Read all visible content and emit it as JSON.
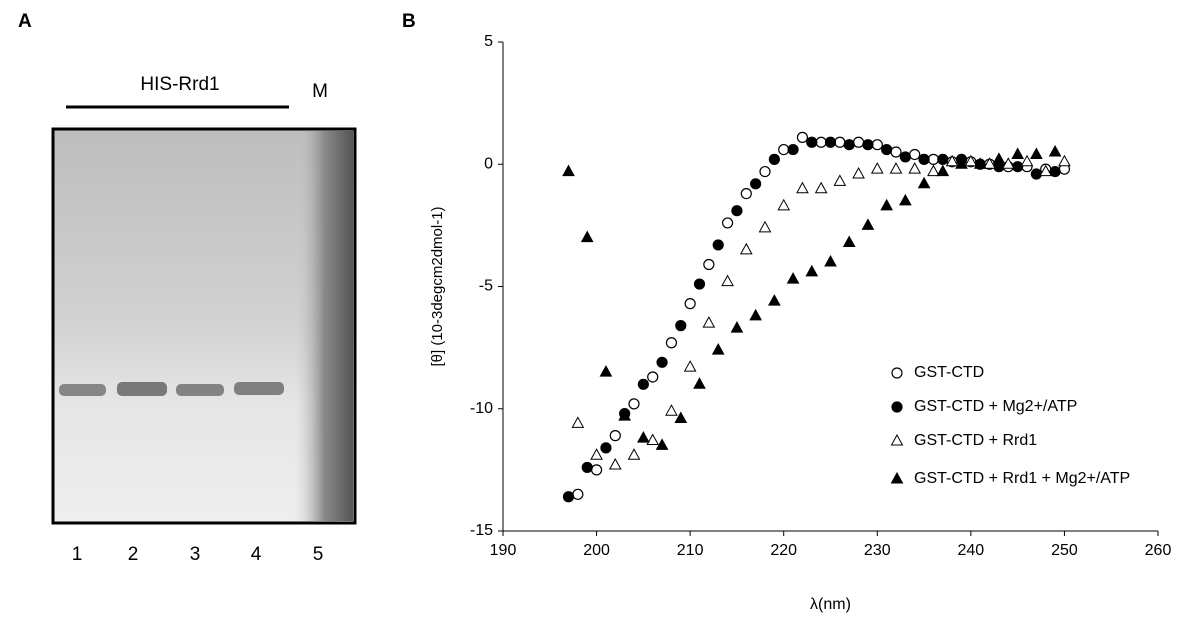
{
  "panels": [
    "A",
    "B"
  ],
  "gel": {
    "label": "HIS-Rrd1",
    "marker": "M",
    "lanes": [
      "1",
      "2",
      "3",
      "4",
      "5"
    ]
  },
  "chart_data": {
    "type": "scatter",
    "x_label": "λ(nm)",
    "y_label": "[θ] (10-3degcm2dmol-1)",
    "xlim": [
      190,
      260
    ],
    "xticks": [
      190,
      200,
      210,
      220,
      230,
      240,
      250,
      260
    ],
    "ylim": [
      -15,
      5
    ],
    "yticks": [
      -15,
      -10,
      -5,
      0,
      5
    ],
    "legend": "lower right",
    "series": [
      {
        "name": "GST-CTD",
        "marker": "circle",
        "filled": false,
        "color": "#000000",
        "x": [
          198,
          200,
          202,
          204,
          206,
          208,
          210,
          212,
          214,
          216,
          218,
          220,
          222,
          224,
          226,
          228,
          230,
          232,
          234,
          236,
          238,
          240,
          242,
          244,
          246,
          248,
          250
        ],
        "values": [
          -13.5,
          -12.5,
          -11.1,
          -9.8,
          -8.7,
          -7.3,
          -5.7,
          -4.1,
          -2.4,
          -1.2,
          -0.3,
          0.6,
          1.1,
          0.9,
          0.9,
          0.9,
          0.8,
          0.5,
          0.4,
          0.2,
          0.1,
          0.1,
          0.0,
          -0.1,
          -0.1,
          -0.2,
          -0.2
        ]
      },
      {
        "name": "GST-CTD + Mg2+/ATP",
        "marker": "circle",
        "filled": true,
        "color": "#000000",
        "x": [
          197,
          199,
          201,
          203,
          205,
          207,
          209,
          211,
          213,
          215,
          217,
          219,
          221,
          223,
          225,
          227,
          229,
          231,
          233,
          235,
          237,
          239,
          241,
          243,
          245,
          247,
          249
        ],
        "values": [
          -13.6,
          -12.4,
          -11.6,
          -10.2,
          -9.0,
          -8.1,
          -6.6,
          -4.9,
          -3.3,
          -1.9,
          -0.8,
          0.2,
          0.6,
          0.9,
          0.9,
          0.8,
          0.8,
          0.6,
          0.3,
          0.2,
          0.2,
          0.2,
          0.0,
          -0.1,
          -0.1,
          -0.4,
          -0.3
        ]
      },
      {
        "name": "GST-CTD + Rrd1",
        "marker": "triangle",
        "filled": false,
        "color": "#000000",
        "x": [
          198,
          200,
          202,
          204,
          206,
          208,
          210,
          212,
          214,
          216,
          218,
          220,
          222,
          224,
          226,
          228,
          230,
          232,
          234,
          236,
          238,
          240,
          242,
          244,
          246,
          248,
          250
        ],
        "values": [
          -10.6,
          -11.9,
          -12.3,
          -11.9,
          -11.3,
          -10.1,
          -8.3,
          -6.5,
          -4.8,
          -3.5,
          -2.6,
          -1.7,
          -1.0,
          -1.0,
          -0.7,
          -0.4,
          -0.2,
          -0.2,
          -0.2,
          -0.3,
          0.1,
          0.1,
          0.0,
          0.0,
          0.1,
          -0.3,
          0.1
        ]
      },
      {
        "name": "GST-CTD + Rrd1 + Mg2+/ATP",
        "marker": "triangle",
        "filled": true,
        "color": "#000000",
        "x": [
          197,
          199,
          201,
          203,
          205,
          207,
          209,
          211,
          213,
          215,
          217,
          219,
          221,
          223,
          225,
          227,
          229,
          231,
          233,
          235,
          237,
          239,
          241,
          243,
          245,
          247,
          249
        ],
        "values": [
          -0.3,
          -3.0,
          -8.5,
          -10.3,
          -11.2,
          -11.5,
          -10.4,
          -9.0,
          -7.6,
          -6.7,
          -6.2,
          -5.6,
          -4.7,
          -4.4,
          -4.0,
          -3.2,
          -2.5,
          -1.7,
          -1.5,
          -0.8,
          -0.3,
          0.0,
          0.0,
          0.2,
          0.4,
          0.4,
          0.5
        ]
      }
    ]
  }
}
